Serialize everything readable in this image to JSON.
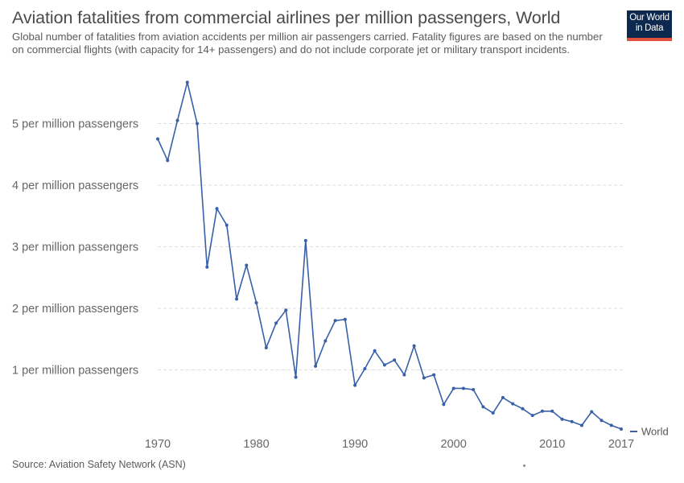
{
  "header": {
    "title": "Aviation fatalities from commercial airlines per million passengers, World",
    "subtitle": "Global number of fatalities from aviation accidents per million air passengers carried. Fatality figures are based on the number on commercial flights (with capacity for 14+ passengers) and do not include corporate jet or military transport incidents."
  },
  "logo": {
    "line1": "Our World",
    "line2": "in Data"
  },
  "footer": {
    "source": "Source: Aviation Safety Network (ASN)"
  },
  "colors": {
    "series": "#3860a8",
    "grid": "#dddddd",
    "logo_bg": "#0d2a4e",
    "logo_bar": "#e0523a"
  },
  "chart_data": {
    "type": "line",
    "title": "Aviation fatalities from commercial airlines per million passengers, World",
    "xlabel": "",
    "ylabel": "",
    "xlim": [
      1970,
      2017
    ],
    "ylim": [
      0,
      5.6
    ],
    "grid": "horizontal dashed",
    "legend": "right-end",
    "y_ticks": [
      {
        "value": 1,
        "label": "1 per million passengers"
      },
      {
        "value": 2,
        "label": "2 per million passengers"
      },
      {
        "value": 3,
        "label": "3 per million passengers"
      },
      {
        "value": 4,
        "label": "4 per million passengers"
      },
      {
        "value": 5,
        "label": "5 per million passengers"
      }
    ],
    "x_ticks": [
      {
        "value": 1970,
        "label": "1970"
      },
      {
        "value": 1980,
        "label": "1980"
      },
      {
        "value": 1990,
        "label": "1990"
      },
      {
        "value": 2000,
        "label": "2000"
      },
      {
        "value": 2010,
        "label": "2010"
      },
      {
        "value": 2017,
        "label": "2017"
      }
    ],
    "series": [
      {
        "name": "World",
        "x": [
          1970,
          1971,
          1972,
          1973,
          1974,
          1975,
          1976,
          1977,
          1978,
          1979,
          1980,
          1981,
          1982,
          1983,
          1984,
          1985,
          1986,
          1987,
          1988,
          1989,
          1990,
          1991,
          1992,
          1993,
          1994,
          1995,
          1996,
          1997,
          1998,
          1999,
          2000,
          2001,
          2002,
          2003,
          2004,
          2005,
          2006,
          2007,
          2008,
          2009,
          2010,
          2011,
          2012,
          2013,
          2014,
          2015,
          2016,
          2017
        ],
        "values": [
          4.75,
          4.4,
          5.05,
          5.67,
          5.0,
          2.67,
          3.62,
          3.35,
          2.15,
          2.7,
          2.09,
          1.36,
          1.76,
          1.97,
          0.88,
          3.1,
          1.06,
          1.47,
          1.8,
          1.82,
          0.75,
          1.02,
          1.31,
          1.08,
          1.16,
          0.92,
          1.39,
          0.87,
          0.92,
          0.44,
          0.7,
          0.7,
          0.68,
          0.4,
          0.3,
          0.55,
          0.45,
          0.37,
          0.26,
          0.33,
          0.33,
          0.2,
          0.16,
          0.1,
          0.32,
          0.18,
          0.1,
          0.04
        ]
      }
    ]
  }
}
